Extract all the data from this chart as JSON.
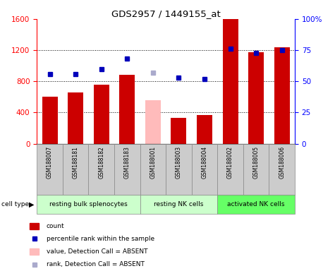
{
  "title": "GDS2957 / 1449155_at",
  "samples": [
    "GSM188007",
    "GSM188181",
    "GSM188182",
    "GSM188183",
    "GSM188001",
    "GSM188003",
    "GSM188004",
    "GSM188002",
    "GSM188005",
    "GSM188006"
  ],
  "counts": [
    600,
    660,
    760,
    880,
    null,
    330,
    370,
    1600,
    1170,
    1240
  ],
  "counts_absent": [
    null,
    null,
    null,
    null,
    560,
    null,
    null,
    null,
    null,
    null
  ],
  "percentile_ranks": [
    56,
    56,
    60,
    68,
    null,
    53,
    52,
    76,
    73,
    75
  ],
  "percentile_ranks_absent": [
    null,
    null,
    null,
    null,
    57,
    null,
    null,
    null,
    null,
    null
  ],
  "cell_types": [
    {
      "label": "resting bulk splenocytes",
      "start": 0,
      "end": 4,
      "color": "#ccffcc"
    },
    {
      "label": "resting NK cells",
      "start": 4,
      "end": 7,
      "color": "#ccffcc"
    },
    {
      "label": "activated NK cells",
      "start": 7,
      "end": 10,
      "color": "#66ff66"
    }
  ],
  "ylim_left": [
    0,
    1600
  ],
  "ylim_right": [
    0,
    100
  ],
  "yticks_left": [
    0,
    400,
    800,
    1200,
    1600
  ],
  "yticks_right": [
    0,
    25,
    50,
    75,
    100
  ],
  "bar_color_present": "#cc0000",
  "bar_color_absent": "#ffbbbb",
  "dot_color_present": "#0000bb",
  "dot_color_absent": "#aaaacc",
  "bg_color_sample_labels": "#cccccc",
  "bg_color_cell_type_light": "#ccffcc",
  "bg_color_cell_type_dark": "#66ff66",
  "grid_vals": [
    400,
    800,
    1200
  ]
}
